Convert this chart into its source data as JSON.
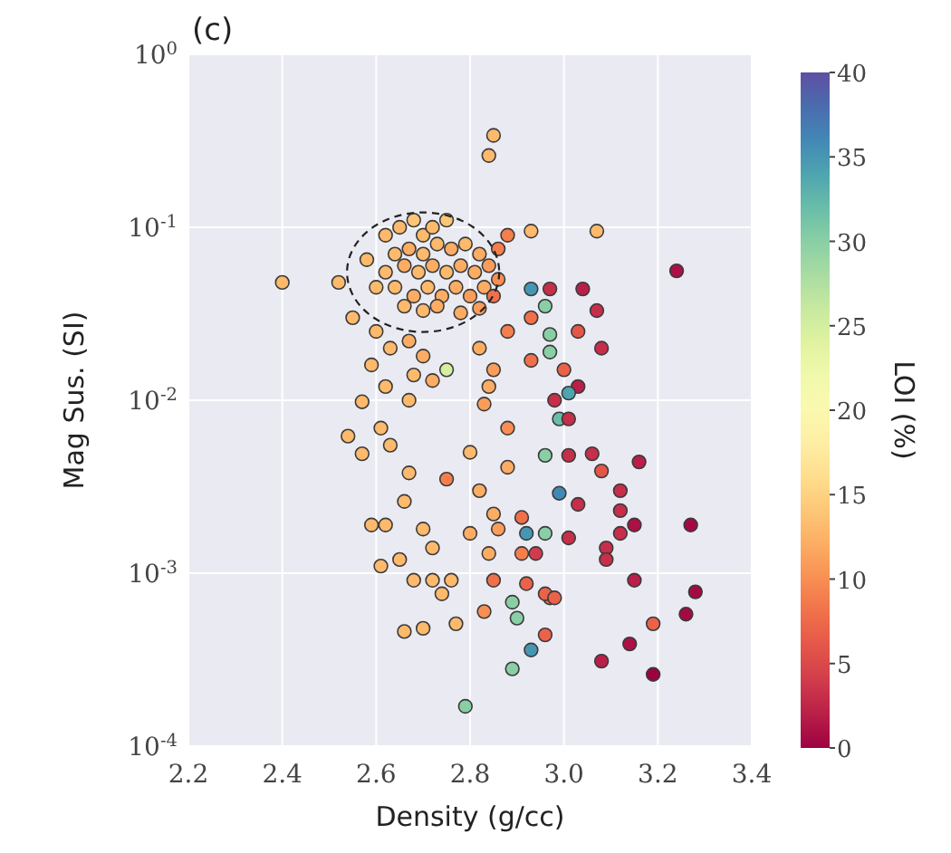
{
  "chart_data": {
    "type": "scatter",
    "title": "(c)",
    "xlabel": "Density (g/cc)",
    "ylabel": "Mag Sus. (SI)",
    "clabel": "LOI (%)",
    "log": "y",
    "grid": true,
    "marker": "circle",
    "xlim": [
      2.2,
      3.4
    ],
    "xticks": [
      {
        "value": 2.2,
        "label": "2.2"
      },
      {
        "value": 2.4,
        "label": "2.4"
      },
      {
        "value": 2.6,
        "label": "2.6"
      },
      {
        "value": 2.8,
        "label": "2.8"
      },
      {
        "value": 3.0,
        "label": "3.0"
      },
      {
        "value": 3.2,
        "label": "3.2"
      },
      {
        "value": 3.4,
        "label": "3.4"
      }
    ],
    "ylim": [
      0.0001,
      1
    ],
    "yticks": [
      {
        "value": 0.0001,
        "label": "10$^{-4}$"
      },
      {
        "value": 0.001,
        "label": "10$^{-3}$"
      },
      {
        "value": 0.01,
        "label": "10$^{-2}$"
      },
      {
        "value": 0.1,
        "label": "10$^{-1}$"
      },
      {
        "value": 1,
        "label": "10$^{0}$"
      }
    ],
    "clim": [
      0,
      40
    ],
    "cticks": [
      0,
      5,
      10,
      15,
      20,
      25,
      30,
      35,
      40
    ],
    "x": [
      2.4,
      2.52,
      2.85,
      2.84,
      2.93,
      3.07,
      2.62,
      2.65,
      2.68,
      2.7,
      2.72,
      2.75,
      2.64,
      2.67,
      2.7,
      2.73,
      2.76,
      2.79,
      2.82,
      2.62,
      2.66,
      2.69,
      2.72,
      2.75,
      2.78,
      2.81,
      2.84,
      2.6,
      2.64,
      2.68,
      2.71,
      2.74,
      2.77,
      2.8,
      2.83,
      2.86,
      2.66,
      2.7,
      2.73,
      2.78,
      2.82,
      2.58,
      2.86,
      2.88,
      2.85,
      2.55,
      2.6,
      2.63,
      2.67,
      2.7,
      2.68,
      2.72,
      2.75,
      2.62,
      2.59,
      2.57,
      2.67,
      2.54,
      2.61,
      2.57,
      2.63,
      2.67,
      2.75,
      2.66,
      2.59,
      2.62,
      2.7,
      2.72,
      2.61,
      2.65,
      2.68,
      2.72,
      2.76,
      2.74,
      2.66,
      2.7,
      2.77,
      2.79,
      2.83,
      2.88,
      2.88,
      2.85,
      2.91,
      2.84,
      2.91,
      2.85,
      2.92,
      2.97,
      2.82,
      2.85,
      2.88,
      2.84,
      2.8,
      2.82,
      2.86,
      2.8,
      2.83,
      2.93,
      2.97,
      3.04,
      2.96,
      3.07,
      2.93,
      2.97,
      3.03,
      3.08,
      2.93,
      2.97,
      3.0,
      3.03,
      3.01,
      2.98,
      2.99,
      3.01,
      2.96,
      3.01,
      3.06,
      3.16,
      3.08,
      3.12,
      2.99,
      3.03,
      3.12,
      3.15,
      3.12,
      3.27,
      2.92,
      2.96,
      3.01,
      3.09,
      3.09,
      2.94,
      3.15,
      2.96,
      2.98,
      2.89,
      2.9,
      3.28,
      3.26,
      3.19,
      2.96,
      3.14,
      2.93,
      3.08,
      3.19,
      2.89,
      3.24
    ],
    "values": [
      0.048,
      0.048,
      0.34,
      0.26,
      0.095,
      0.095,
      0.09,
      0.1,
      0.11,
      0.09,
      0.1,
      0.11,
      0.07,
      0.075,
      0.07,
      0.08,
      0.075,
      0.08,
      0.07,
      0.055,
      0.06,
      0.055,
      0.06,
      0.055,
      0.06,
      0.055,
      0.06,
      0.045,
      0.045,
      0.04,
      0.045,
      0.04,
      0.045,
      0.04,
      0.045,
      0.05,
      0.035,
      0.033,
      0.035,
      0.032,
      0.034,
      0.065,
      0.075,
      0.09,
      0.04,
      0.03,
      0.025,
      0.02,
      0.022,
      0.018,
      0.014,
      0.013,
      0.015,
      0.012,
      0.016,
      0.0098,
      0.01,
      0.0062,
      0.0069,
      0.0049,
      0.0055,
      0.0038,
      0.0035,
      0.0026,
      0.0019,
      0.0019,
      0.0018,
      0.0014,
      0.0011,
      0.0012,
      0.00091,
      0.00091,
      0.00091,
      0.00076,
      0.00046,
      0.00048,
      0.00051,
      0.00017,
      0.0095,
      0.0069,
      0.0041,
      0.0022,
      0.0021,
      0.0013,
      0.0013,
      0.00091,
      0.00087,
      0.00072,
      0.02,
      0.015,
      0.025,
      0.012,
      0.005,
      0.003,
      0.0018,
      0.0017,
      0.0006,
      0.044,
      0.044,
      0.044,
      0.035,
      0.033,
      0.03,
      0.024,
      0.025,
      0.02,
      0.017,
      0.019,
      0.015,
      0.012,
      0.011,
      0.01,
      0.0078,
      0.0078,
      0.0048,
      0.0048,
      0.0049,
      0.0044,
      0.0039,
      0.003,
      0.0029,
      0.0025,
      0.0023,
      0.0019,
      0.0017,
      0.0019,
      0.0017,
      0.0017,
      0.0016,
      0.0014,
      0.0012,
      0.0013,
      0.00091,
      0.00076,
      0.00072,
      0.00068,
      0.00055,
      0.00078,
      0.00058,
      0.00051,
      0.00044,
      0.00039,
      0.00036,
      0.00031,
      0.00026,
      0.00028,
      0.056
    ],
    "cvalues": [
      13,
      13,
      13,
      13,
      13,
      13,
      13,
      13,
      14,
      13,
      13,
      14,
      13,
      12,
      13,
      13,
      12,
      13,
      12,
      13,
      12,
      13,
      12,
      13,
      12,
      12,
      11,
      13,
      13,
      12,
      13,
      12,
      12,
      11,
      12,
      10,
      13,
      13,
      12,
      12,
      11,
      13,
      9,
      9,
      8,
      13,
      13,
      13,
      12,
      12,
      13,
      12,
      25,
      13,
      13,
      13,
      13,
      13,
      13,
      13,
      13,
      13,
      9,
      13,
      13,
      13,
      13,
      13,
      13,
      13,
      13,
      13,
      13,
      13,
      13,
      13,
      13,
      30,
      11,
      10,
      12,
      12,
      8,
      12,
      9,
      8,
      7,
      7,
      12,
      11,
      9,
      12,
      13,
      12,
      11,
      12,
      10,
      35,
      3,
      2,
      30,
      3,
      8,
      30,
      6,
      3,
      8,
      30,
      7,
      2,
      34,
      3,
      32,
      3,
      30,
      3,
      3,
      2,
      6,
      3,
      36,
      3,
      3,
      1,
      3,
      0.5,
      35,
      30,
      3,
      3,
      3,
      4,
      2,
      7,
      7,
      30,
      30,
      0.5,
      0.5,
      7,
      7,
      1,
      35,
      2,
      0,
      30,
      1
    ]
  }
}
